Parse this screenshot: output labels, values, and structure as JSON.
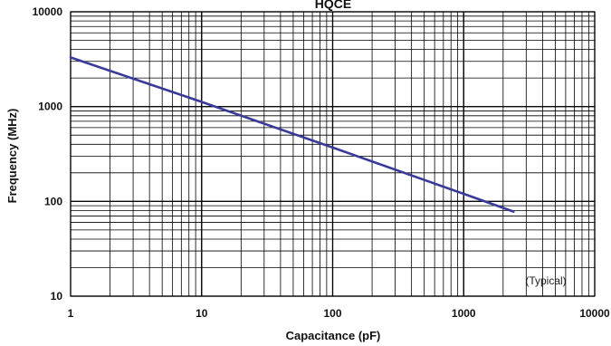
{
  "chart_data": {
    "type": "line",
    "title": "HQCE",
    "xlabel": "Capacitance (pF)",
    "ylabel": "Frequency (MHz)",
    "xscale": "log",
    "yscale": "log",
    "xlim": [
      1,
      10000
    ],
    "ylim": [
      10,
      10000
    ],
    "grid": true,
    "x_ticks": [
      "1",
      "10",
      "100",
      "1000",
      "10000"
    ],
    "y_ticks": [
      "10",
      "100",
      "1000",
      "10000"
    ],
    "annotation": "(Typical)",
    "series": [
      {
        "x": [
          1,
          10,
          100,
          1000,
          2400
        ],
        "y": [
          3300,
          1120,
          370,
          120,
          78
        ],
        "color": "#3a3a9a"
      }
    ]
  }
}
